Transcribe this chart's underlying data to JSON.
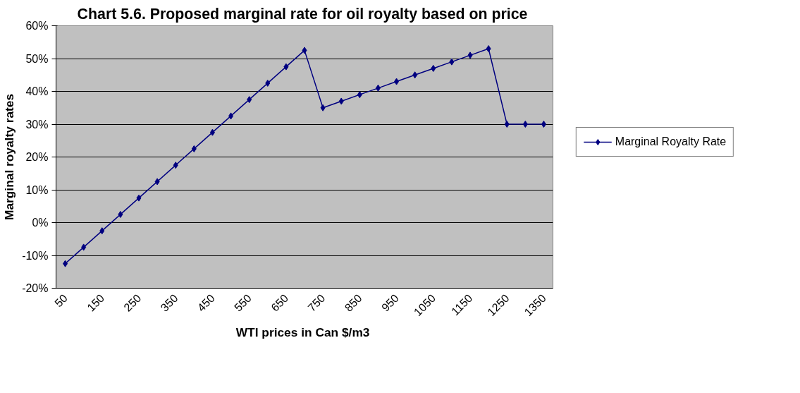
{
  "chart_data": {
    "type": "line",
    "title": "Chart 5.6.  Proposed marginal rate for oil royalty based on price",
    "xlabel": "WTI  prices in Can $/m3",
    "ylabel": "Marginal royalty rates",
    "categories": [
      "50",
      null,
      "150",
      null,
      "250",
      null,
      "350",
      null,
      "450",
      null,
      "550",
      null,
      "650",
      null,
      "750",
      null,
      "850",
      null,
      "950",
      null,
      "1050",
      null,
      "1150",
      null,
      "1250",
      null,
      "1350"
    ],
    "series": [
      {
        "name": "Marginal Royalty Rate",
        "color": "#000080",
        "values": [
          -12.5,
          -7.5,
          -2.5,
          2.5,
          7.5,
          12.5,
          17.5,
          22.5,
          27.5,
          32.5,
          37.5,
          42.5,
          47.5,
          52.5,
          35,
          37,
          39,
          41,
          43,
          45,
          47,
          49,
          51,
          53,
          30,
          30,
          30
        ]
      }
    ],
    "ylim": [
      -20,
      60
    ],
    "yticks": [
      {
        "value": -20,
        "label": "-20%"
      },
      {
        "value": -10,
        "label": "-10%"
      },
      {
        "value": 0,
        "label": "0%"
      },
      {
        "value": 10,
        "label": "10%"
      },
      {
        "value": 20,
        "label": "20%"
      },
      {
        "value": 30,
        "label": "30%"
      },
      {
        "value": 40,
        "label": "40%"
      },
      {
        "value": 50,
        "label": "50%"
      },
      {
        "value": 60,
        "label": "60%"
      }
    ],
    "grid": "y",
    "legend": "right",
    "marker": "diamond",
    "line_style": "solid"
  }
}
